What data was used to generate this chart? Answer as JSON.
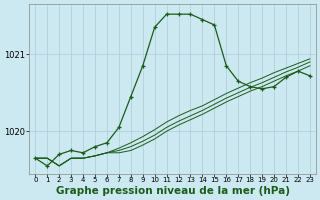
{
  "background_color": "#cce8f0",
  "grid_color": "#aaccdd",
  "line_color": "#1a5c1a",
  "xlabel": "Graphe pression niveau de la mer (hPa)",
  "xlabel_fontsize": 7.5,
  "xlim": [
    -0.5,
    23.5
  ],
  "ylim": [
    1019.45,
    1021.65
  ],
  "yticks": [
    1020,
    1021
  ],
  "xticks": [
    0,
    1,
    2,
    3,
    4,
    5,
    6,
    7,
    8,
    9,
    10,
    11,
    12,
    13,
    14,
    15,
    16,
    17,
    18,
    19,
    20,
    21,
    22,
    23
  ],
  "series": [
    {
      "y": [
        1019.65,
        1019.65,
        1019.55,
        1019.65,
        1019.65,
        1019.68,
        1019.72,
        1019.72,
        1019.75,
        1019.82,
        1019.9,
        1020.0,
        1020.08,
        1020.15,
        1020.22,
        1020.3,
        1020.38,
        1020.45,
        1020.52,
        1020.58,
        1020.65,
        1020.72,
        1020.78,
        1020.85
      ],
      "marker": false,
      "lw": 0.7
    },
    {
      "y": [
        1019.65,
        1019.65,
        1019.55,
        1019.65,
        1019.65,
        1019.68,
        1019.72,
        1019.75,
        1019.8,
        1019.87,
        1019.95,
        1020.05,
        1020.13,
        1020.2,
        1020.27,
        1020.35,
        1020.43,
        1020.5,
        1020.57,
        1020.63,
        1020.7,
        1020.77,
        1020.83,
        1020.9
      ],
      "marker": false,
      "lw": 0.7
    },
    {
      "y": [
        1019.65,
        1019.65,
        1019.55,
        1019.65,
        1019.65,
        1019.68,
        1019.72,
        1019.78,
        1019.85,
        1019.93,
        1020.02,
        1020.12,
        1020.2,
        1020.27,
        1020.33,
        1020.41,
        1020.49,
        1020.56,
        1020.63,
        1020.69,
        1020.76,
        1020.82,
        1020.88,
        1020.94
      ],
      "marker": false,
      "lw": 0.7
    },
    {
      "y": [
        1019.65,
        1019.55,
        1019.7,
        1019.75,
        1019.72,
        1019.8,
        1019.85,
        1020.05,
        1020.45,
        1020.85,
        1021.35,
        1021.52,
        1021.52,
        1021.52,
        1021.45,
        1021.38,
        1020.85,
        1020.65,
        1020.58,
        1020.55,
        1020.58,
        1020.7,
        1020.78,
        1020.72
      ],
      "marker": true,
      "lw": 0.9
    }
  ]
}
